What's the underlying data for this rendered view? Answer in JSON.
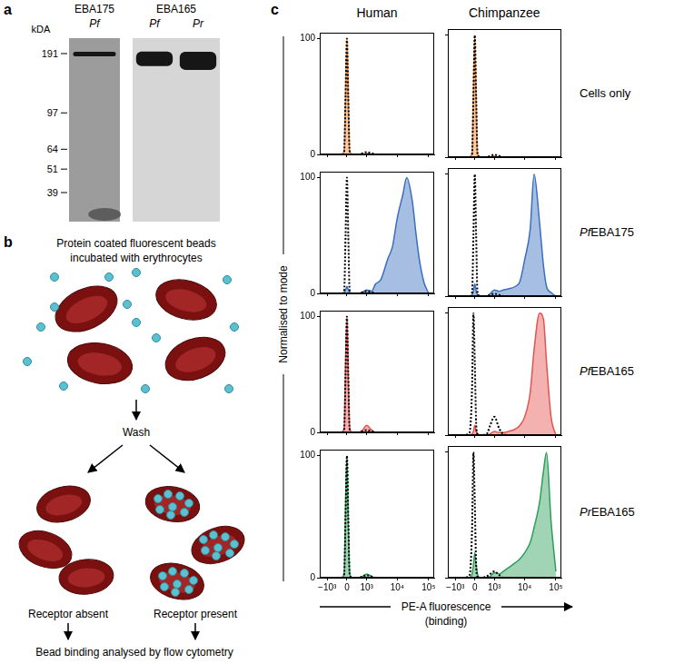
{
  "panel_a": {
    "label": "a",
    "unit": "kDA",
    "markers": [
      191,
      97,
      64,
      51,
      39
    ],
    "blots": [
      {
        "protein": "EBA175",
        "lanes": [
          {
            "name": "Pf",
            "band_kda": 190
          }
        ]
      },
      {
        "protein": "EBA165",
        "lanes": [
          {
            "name": "Pf",
            "band_kda": 180
          },
          {
            "name": "Pr",
            "band_kda": 176
          }
        ]
      }
    ]
  },
  "panel_b": {
    "label": "b",
    "caption": [
      "Protein coated fluorescent beads",
      "incubated with erythrocytes"
    ],
    "step": "Wash",
    "outcomes": [
      "Receptor absent",
      "Receptor present"
    ],
    "result": "Bead binding analysed by flow cytometry"
  },
  "panel_c": {
    "label": "c",
    "columns": [
      "Human",
      "Chimpanzee"
    ],
    "rows": [
      "Cells only",
      "PfEBA175",
      "PfEBA165",
      "PrEBA165"
    ],
    "y_label": "Normalised to mode",
    "x_label": "PE-A fluorescence",
    "x_label_sub": "(binding)"
  },
  "chart_data": [
    {
      "type": "line",
      "log": "x",
      "grid": false,
      "tick_labels": "y",
      "x": [
        -1000,
        -500,
        -200,
        -100,
        -50,
        0,
        50,
        100,
        200,
        500,
        700,
        1000,
        1500,
        2000,
        3000,
        5000,
        7000,
        10000,
        15000,
        20000,
        30000,
        40000,
        50000,
        70000,
        100000
      ],
      "xlim": [
        -1800,
        150000
      ],
      "xticks": [
        {
          "value": -1000,
          "label": "−10³"
        },
        0,
        {
          "value": 1000,
          "label": "10³"
        },
        {
          "value": 10000,
          "label": "10⁴"
        },
        {
          "value": 100000,
          "label": "10⁵"
        }
      ],
      "ylim": [
        0,
        105
      ],
      "yticks": [
        0,
        100
      ],
      "series": [
        {
          "type": "line",
          "line_style": "dotted",
          "color": "#000000",
          "values": [
            0,
            0,
            0,
            3,
            50,
            100,
            50,
            3,
            0,
            0,
            1,
            2,
            1,
            0,
            0,
            0,
            0,
            0,
            0,
            0,
            0,
            0,
            0,
            0,
            0
          ]
        },
        {
          "type": "area",
          "color": "#f08a3c",
          "values": [
            0,
            0,
            0,
            3,
            55,
            100,
            45,
            3,
            0,
            0,
            0,
            1,
            0,
            0,
            0,
            0,
            0,
            0,
            0,
            0,
            0,
            0,
            0,
            0,
            0
          ]
        }
      ]
    },
    {
      "type": "line",
      "log": "x",
      "grid": false,
      "tick_labels": false,
      "x": [
        -1000,
        -500,
        -200,
        -100,
        -50,
        0,
        50,
        100,
        200,
        500,
        700,
        1000,
        1500,
        2000,
        3000,
        5000,
        7000,
        10000,
        15000,
        20000,
        30000,
        40000,
        50000,
        70000,
        100000
      ],
      "xlim": [
        -1800,
        150000
      ],
      "xticks": [
        {
          "value": -1000,
          "label": "−10³"
        },
        0,
        {
          "value": 1000,
          "label": "10³"
        },
        {
          "value": 10000,
          "label": "10⁴"
        },
        {
          "value": 100000,
          "label": "10⁵"
        }
      ],
      "ylim": [
        0,
        105
      ],
      "yticks": [
        0,
        100
      ],
      "series": [
        {
          "type": "line",
          "line_style": "dotted",
          "color": "#000000",
          "values": [
            0,
            0,
            0,
            3,
            50,
            100,
            50,
            3,
            0,
            0,
            1,
            2,
            1,
            0,
            0,
            0,
            0,
            0,
            0,
            0,
            0,
            0,
            0,
            0,
            0
          ]
        },
        {
          "type": "area",
          "color": "#f08a3c",
          "values": [
            0,
            0,
            0,
            3,
            55,
            100,
            45,
            3,
            0,
            0,
            0,
            1,
            0,
            0,
            0,
            0,
            0,
            0,
            0,
            0,
            0,
            0,
            0,
            0,
            0
          ]
        }
      ]
    },
    {
      "type": "line",
      "log": "x",
      "grid": false,
      "tick_labels": "y",
      "x": [
        -1000,
        -500,
        -200,
        -100,
        -50,
        0,
        50,
        100,
        200,
        500,
        700,
        1000,
        1500,
        2000,
        3000,
        5000,
        7000,
        10000,
        15000,
        20000,
        30000,
        40000,
        50000,
        70000,
        100000
      ],
      "xlim": [
        -1800,
        150000
      ],
      "xticks": [
        {
          "value": -1000,
          "label": "−10³"
        },
        0,
        {
          "value": 1000,
          "label": "10³"
        },
        {
          "value": 10000,
          "label": "10⁴"
        },
        {
          "value": 100000,
          "label": "10⁵"
        }
      ],
      "ylim": [
        0,
        105
      ],
      "yticks": [
        0,
        100
      ],
      "series": [
        {
          "type": "line",
          "line_style": "dotted",
          "color": "#000000",
          "values": [
            0,
            0,
            0,
            3,
            50,
            100,
            50,
            3,
            0,
            0,
            1,
            2,
            1,
            0,
            0,
            0,
            0,
            0,
            0,
            0,
            0,
            0,
            0,
            0,
            0
          ]
        },
        {
          "type": "area",
          "color": "#3a6fbf",
          "values": [
            0,
            0,
            0,
            1,
            3,
            6,
            3,
            1,
            0,
            0,
            1,
            3,
            2,
            8,
            12,
            30,
            40,
            65,
            85,
            100,
            80,
            50,
            30,
            10,
            0
          ]
        }
      ]
    },
    {
      "type": "line",
      "log": "x",
      "grid": false,
      "tick_labels": false,
      "x": [
        -1000,
        -500,
        -200,
        -100,
        -50,
        0,
        50,
        100,
        200,
        500,
        700,
        1000,
        1500,
        2000,
        3000,
        5000,
        7000,
        10000,
        15000,
        20000,
        30000,
        40000,
        50000,
        70000,
        100000
      ],
      "xlim": [
        -1800,
        150000
      ],
      "xticks": [
        {
          "value": -1000,
          "label": "−10³"
        },
        0,
        {
          "value": 1000,
          "label": "10³"
        },
        {
          "value": 10000,
          "label": "10⁴"
        },
        {
          "value": 100000,
          "label": "10⁵"
        }
      ],
      "ylim": [
        0,
        105
      ],
      "yticks": [
        0,
        100
      ],
      "series": [
        {
          "type": "line",
          "line_style": "dotted",
          "color": "#000000",
          "values": [
            0,
            0,
            0,
            3,
            50,
            100,
            50,
            3,
            0,
            0,
            1,
            2,
            1,
            0,
            0,
            0,
            0,
            0,
            0,
            0,
            0,
            0,
            0,
            0,
            0
          ]
        },
        {
          "type": "area",
          "color": "#3a6fbf",
          "values": [
            0,
            0,
            0,
            1,
            4,
            10,
            4,
            1,
            0,
            0,
            2,
            5,
            4,
            5,
            6,
            8,
            12,
            30,
            55,
            100,
            60,
            25,
            8,
            3,
            0
          ]
        }
      ]
    },
    {
      "type": "line",
      "log": "x",
      "grid": false,
      "tick_labels": "y",
      "x": [
        -1000,
        -500,
        -200,
        -100,
        -50,
        0,
        50,
        100,
        200,
        500,
        700,
        1000,
        1500,
        2000,
        3000,
        5000,
        7000,
        10000,
        15000,
        20000,
        30000,
        40000,
        50000,
        70000,
        100000
      ],
      "xlim": [
        -1800,
        150000
      ],
      "xticks": [
        {
          "value": -1000,
          "label": "−10³"
        },
        0,
        {
          "value": 1000,
          "label": "10³"
        },
        {
          "value": 10000,
          "label": "10⁴"
        },
        {
          "value": 100000,
          "label": "10⁵"
        }
      ],
      "ylim": [
        0,
        105
      ],
      "yticks": [
        0,
        100
      ],
      "series": [
        {
          "type": "line",
          "line_style": "dotted",
          "color": "#000000",
          "values": [
            0,
            0,
            0,
            3,
            50,
            100,
            50,
            3,
            0,
            0,
            1,
            2,
            1,
            0,
            0,
            0,
            0,
            0,
            0,
            0,
            0,
            0,
            0,
            0,
            0
          ]
        },
        {
          "type": "area",
          "color": "#e4534f",
          "values": [
            0,
            0,
            0,
            4,
            60,
            100,
            45,
            4,
            0,
            0,
            2,
            6,
            2,
            0,
            0,
            0,
            0,
            0,
            0,
            0,
            0,
            0,
            0,
            0,
            0
          ]
        }
      ]
    },
    {
      "type": "line",
      "log": "x",
      "grid": false,
      "tick_labels": false,
      "x": [
        -1000,
        -500,
        -200,
        -100,
        -50,
        0,
        50,
        100,
        200,
        500,
        700,
        1000,
        1500,
        2000,
        3000,
        5000,
        7000,
        10000,
        15000,
        20000,
        30000,
        40000,
        50000,
        70000,
        100000
      ],
      "xlim": [
        -1800,
        150000
      ],
      "xticks": [
        {
          "value": -1000,
          "label": "−10³"
        },
        0,
        {
          "value": 1000,
          "label": "10³"
        },
        {
          "value": 10000,
          "label": "10⁴"
        },
        {
          "value": 100000,
          "label": "10⁵"
        }
      ],
      "ylim": [
        0,
        105
      ],
      "yticks": [
        0,
        100
      ],
      "series": [
        {
          "type": "line",
          "line_style": "dotted",
          "color": "#000000",
          "values": [
            0,
            0,
            2,
            40,
            100,
            60,
            10,
            1,
            0,
            1,
            8,
            15,
            5,
            1,
            0,
            0,
            0,
            0,
            0,
            0,
            0,
            0,
            0,
            0,
            0
          ]
        },
        {
          "type": "area",
          "color": "#e4534f",
          "values": [
            0,
            0,
            0,
            1,
            3,
            8,
            3,
            1,
            0,
            0,
            1,
            3,
            2,
            2,
            3,
            5,
            8,
            15,
            35,
            70,
            100,
            95,
            60,
            15,
            0
          ]
        }
      ]
    },
    {
      "type": "line",
      "log": "x",
      "grid": false,
      "tick_labels": true,
      "x": [
        -1000,
        -500,
        -200,
        -100,
        -50,
        0,
        50,
        100,
        200,
        500,
        700,
        1000,
        1500,
        2000,
        3000,
        5000,
        7000,
        10000,
        15000,
        20000,
        30000,
        40000,
        50000,
        70000,
        100000
      ],
      "xlim": [
        -1800,
        150000
      ],
      "xticks": [
        {
          "value": -1000,
          "label": "−10³"
        },
        0,
        {
          "value": 1000,
          "label": "10³"
        },
        {
          "value": 10000,
          "label": "10⁴"
        },
        {
          "value": 100000,
          "label": "10⁵"
        }
      ],
      "ylim": [
        0,
        105
      ],
      "yticks": [
        0,
        100
      ],
      "series": [
        {
          "type": "line",
          "line_style": "dotted",
          "color": "#000000",
          "values": [
            0,
            0,
            0,
            3,
            50,
            100,
            50,
            3,
            0,
            0,
            1,
            2,
            1,
            0,
            0,
            0,
            0,
            0,
            0,
            0,
            0,
            0,
            0,
            0,
            0
          ]
        },
        {
          "type": "area",
          "color": "#2e9e5b",
          "values": [
            0,
            0,
            0,
            4,
            60,
            100,
            45,
            4,
            0,
            0,
            1,
            3,
            1,
            0,
            0,
            0,
            0,
            0,
            0,
            0,
            0,
            0,
            0,
            0,
            0
          ]
        }
      ]
    },
    {
      "type": "line",
      "log": "x",
      "grid": false,
      "tick_labels": "x",
      "x": [
        -1000,
        -500,
        -200,
        -100,
        -50,
        0,
        50,
        100,
        200,
        500,
        700,
        1000,
        1500,
        2000,
        3000,
        5000,
        7000,
        10000,
        15000,
        20000,
        30000,
        40000,
        50000,
        70000,
        100000
      ],
      "xlim": [
        -1800,
        150000
      ],
      "xticks": [
        {
          "value": -1000,
          "label": "−10³"
        },
        0,
        {
          "value": 1000,
          "label": "10³"
        },
        {
          "value": 10000,
          "label": "10⁴"
        },
        {
          "value": 100000,
          "label": "10⁵"
        }
      ],
      "ylim": [
        0,
        105
      ],
      "yticks": [
        0,
        100
      ],
      "series": [
        {
          "type": "line",
          "line_style": "dotted",
          "color": "#000000",
          "values": [
            0,
            0,
            2,
            40,
            100,
            60,
            10,
            1,
            0,
            1,
            3,
            5,
            2,
            0,
            0,
            0,
            0,
            0,
            0,
            0,
            0,
            0,
            0,
            0,
            0
          ]
        },
        {
          "type": "area",
          "color": "#2e9e5b",
          "values": [
            0,
            0,
            0,
            3,
            10,
            20,
            10,
            3,
            0,
            0,
            1,
            4,
            3,
            5,
            8,
            12,
            15,
            20,
            28,
            40,
            60,
            85,
            100,
            45,
            5
          ]
        }
      ]
    }
  ]
}
